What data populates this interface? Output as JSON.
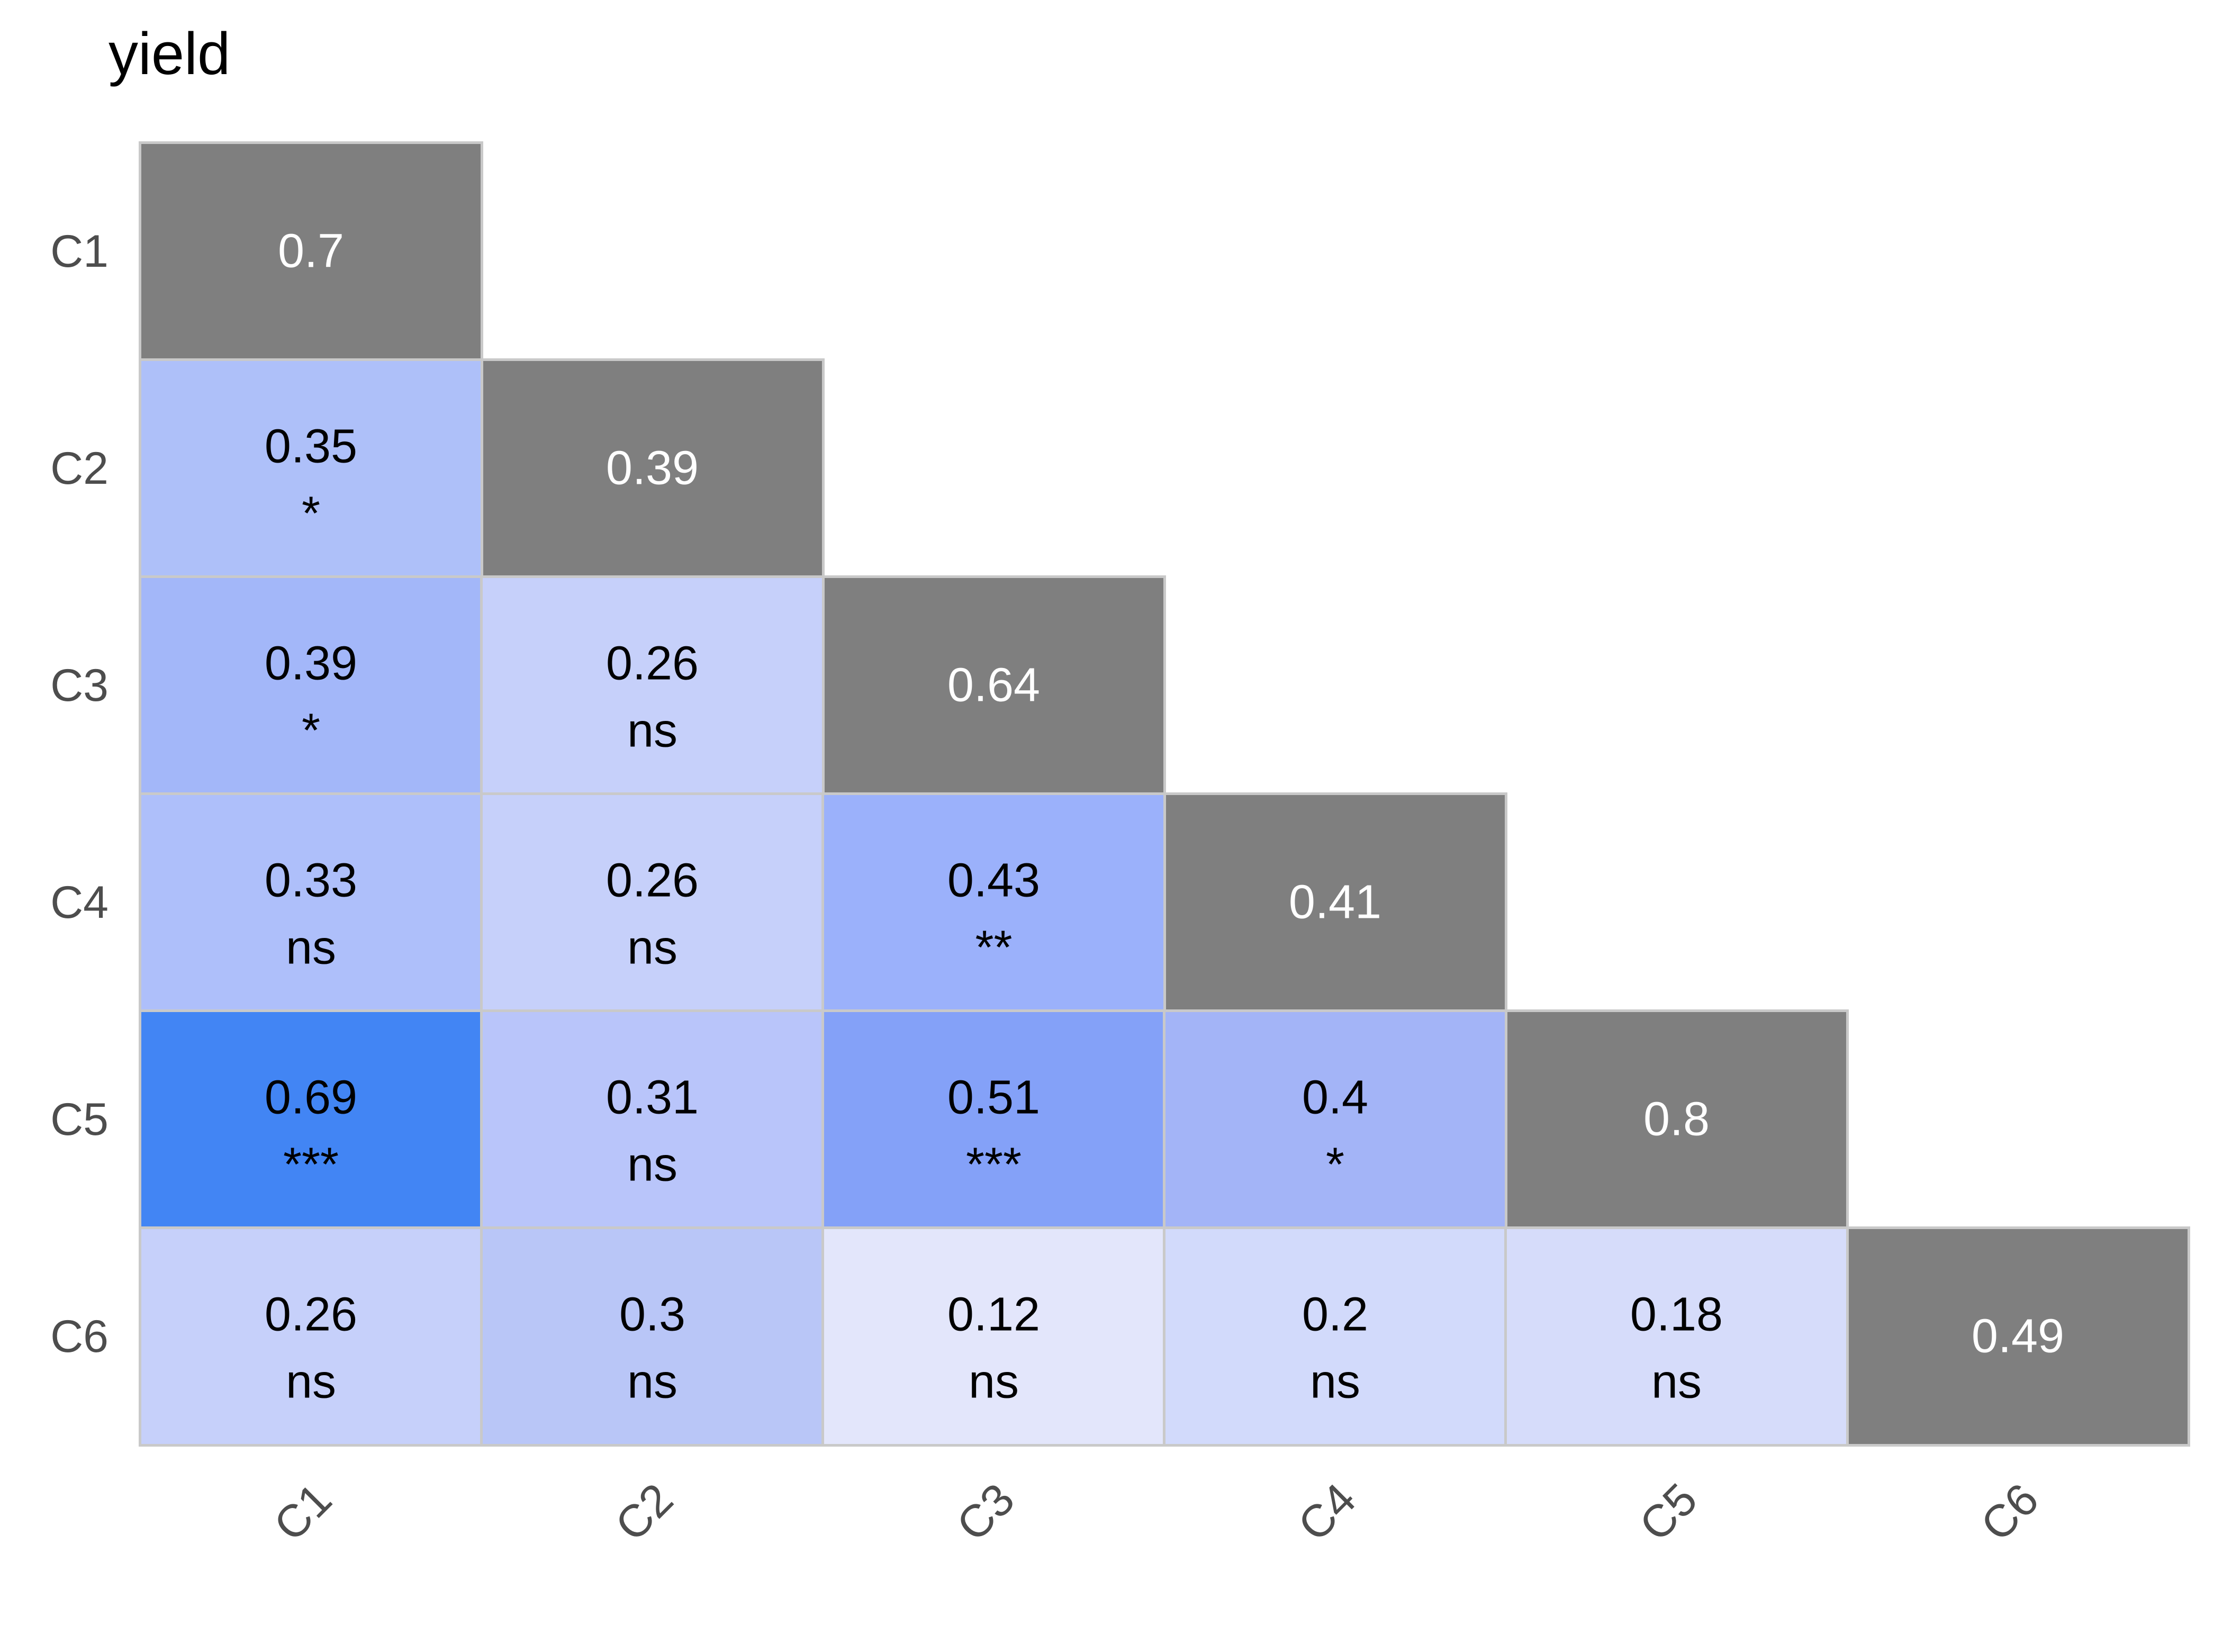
{
  "title": "yield",
  "colors": {
    "background": "#ffffff",
    "diagonal_cell": "#7f7f7f",
    "grid_line": "#c9c9c9",
    "axis_label_text": "#4d4d4d",
    "title_text": "#000000",
    "cell_text": "#000000",
    "diagonal_cell_text": "#ffffff"
  },
  "axes": {
    "x_labels": [
      "C1",
      "C2",
      "C3",
      "C4",
      "C5",
      "C6"
    ],
    "y_labels": [
      "C1",
      "C2",
      "C3",
      "C4",
      "C5",
      "C6"
    ],
    "x_label_rotation_deg": 45
  },
  "chart_data": {
    "type": "heatmap",
    "subtype": "lower-triangular correlation matrix with significance marks",
    "title": "yield",
    "variables": [
      "C1",
      "C2",
      "C3",
      "C4",
      "C5",
      "C6"
    ],
    "legend_position": "none",
    "diagonal": [
      {
        "label": "C1",
        "value": "0.7",
        "color": "#7f7f7f"
      },
      {
        "label": "C2",
        "value": "0.39",
        "color": "#7f7f7f"
      },
      {
        "label": "C3",
        "value": "0.64",
        "color": "#7f7f7f"
      },
      {
        "label": "C4",
        "value": "0.41",
        "color": "#7f7f7f"
      },
      {
        "label": "C5",
        "value": "0.8",
        "color": "#7f7f7f"
      },
      {
        "label": "C6",
        "value": "0.49",
        "color": "#7f7f7f"
      }
    ],
    "cells": [
      {
        "row": "C2",
        "col": "C1",
        "value": "0.35",
        "significance": "*",
        "color": "#aec0f9"
      },
      {
        "row": "C3",
        "col": "C1",
        "value": "0.39",
        "significance": "*",
        "color": "#a3b7f9"
      },
      {
        "row": "C3",
        "col": "C2",
        "value": "0.26",
        "significance": "ns",
        "color": "#c6d0fa"
      },
      {
        "row": "C4",
        "col": "C1",
        "value": "0.33",
        "significance": "ns",
        "color": "#aebffa"
      },
      {
        "row": "C4",
        "col": "C2",
        "value": "0.26",
        "significance": "ns",
        "color": "#c6d0fa"
      },
      {
        "row": "C4",
        "col": "C3",
        "value": "0.43",
        "significance": "**",
        "color": "#9bb1fb"
      },
      {
        "row": "C5",
        "col": "C1",
        "value": "0.69",
        "significance": "***",
        "color": "#4285f4"
      },
      {
        "row": "C5",
        "col": "C2",
        "value": "0.31",
        "significance": "ns",
        "color": "#b9c5fa"
      },
      {
        "row": "C5",
        "col": "C3",
        "value": "0.51",
        "significance": "***",
        "color": "#84a1f8"
      },
      {
        "row": "C5",
        "col": "C4",
        "value": "0.4",
        "significance": "*",
        "color": "#a3b4f7"
      },
      {
        "row": "C6",
        "col": "C1",
        "value": "0.26",
        "significance": "ns",
        "color": "#c6d0fa"
      },
      {
        "row": "C6",
        "col": "C2",
        "value": "0.3",
        "significance": "ns",
        "color": "#b9c6f7"
      },
      {
        "row": "C6",
        "col": "C3",
        "value": "0.12",
        "significance": "ns",
        "color": "#e3e6fb"
      },
      {
        "row": "C6",
        "col": "C4",
        "value": "0.2",
        "significance": "ns",
        "color": "#d2dafb"
      },
      {
        "row": "C6",
        "col": "C5",
        "value": "0.18",
        "significance": "ns",
        "color": "#d6dcfa"
      }
    ]
  }
}
